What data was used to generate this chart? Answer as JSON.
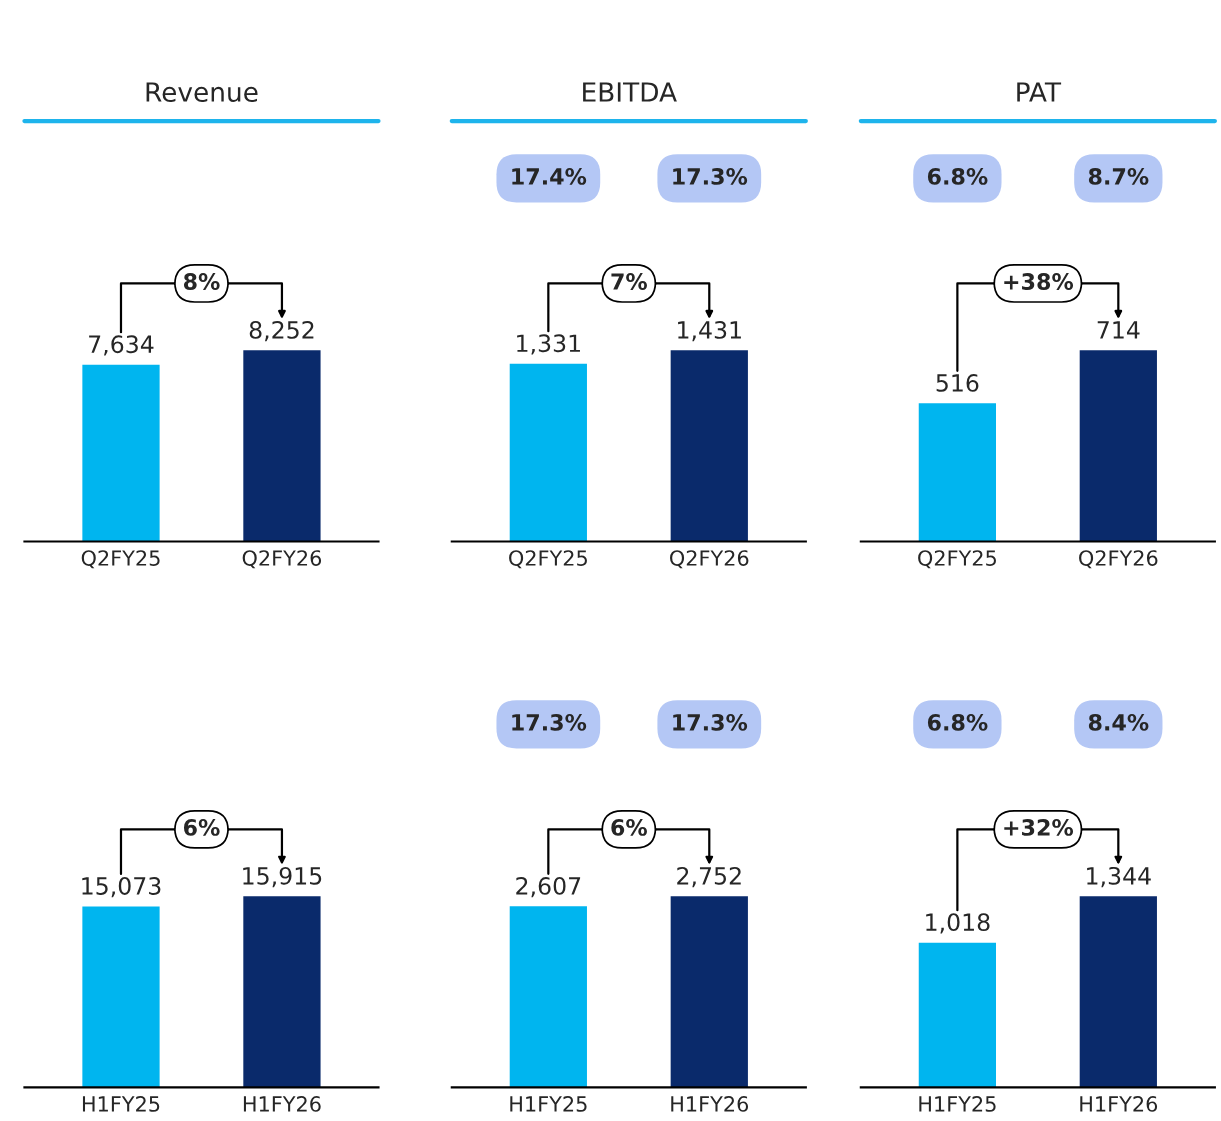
{
  "chart_data": [
    {
      "type": "bar",
      "title": "Revenue",
      "categories": [
        "Q2FY25",
        "Q2FY26"
      ],
      "values": [
        7634,
        8252
      ],
      "colors": [
        "#00b5ef",
        "#0a2a6b"
      ],
      "value_labels": [
        "7,634",
        "8,252"
      ],
      "annotations": [
        "8%"
      ]
    },
    {
      "type": "bar",
      "title": "EBITDA",
      "categories": [
        "Q2FY25",
        "Q2FY26"
      ],
      "values": [
        1331,
        1431
      ],
      "colors": [
        "#00b5ef",
        "#0a2a6b"
      ],
      "value_labels": [
        "1,331",
        "1,431"
      ],
      "annotations": [
        "7%",
        "17.4%",
        "17.3%"
      ]
    },
    {
      "type": "bar",
      "title": "PAT",
      "categories": [
        "Q2FY25",
        "Q2FY26"
      ],
      "values": [
        516,
        714
      ],
      "colors": [
        "#00b5ef",
        "#0a2a6b"
      ],
      "value_labels": [
        "516",
        "714"
      ],
      "annotations": [
        "+38%",
        "6.8%",
        "8.7%"
      ]
    },
    {
      "type": "bar",
      "categories": [
        "H1FY25",
        "H1FY26"
      ],
      "values": [
        15073,
        15915
      ],
      "colors": [
        "#00b5ef",
        "#0a2a6b"
      ],
      "value_labels": [
        "15,073",
        "15,915"
      ],
      "annotations": [
        "6%"
      ]
    },
    {
      "type": "bar",
      "categories": [
        "H1FY25",
        "H1FY26"
      ],
      "values": [
        2607,
        2752
      ],
      "colors": [
        "#00b5ef",
        "#0a2a6b"
      ],
      "value_labels": [
        "2,607",
        "2,752"
      ],
      "annotations": [
        "6%",
        "17.3%",
        "17.3%"
      ]
    },
    {
      "type": "bar",
      "categories": [
        "H1FY25",
        "H1FY26"
      ],
      "values": [
        1018,
        1344
      ],
      "colors": [
        "#00b5ef",
        "#0a2a6b"
      ],
      "value_labels": [
        "1,018",
        "1,344"
      ],
      "annotations": [
        "+32%",
        "6.8%",
        "8.4%"
      ]
    }
  ]
}
